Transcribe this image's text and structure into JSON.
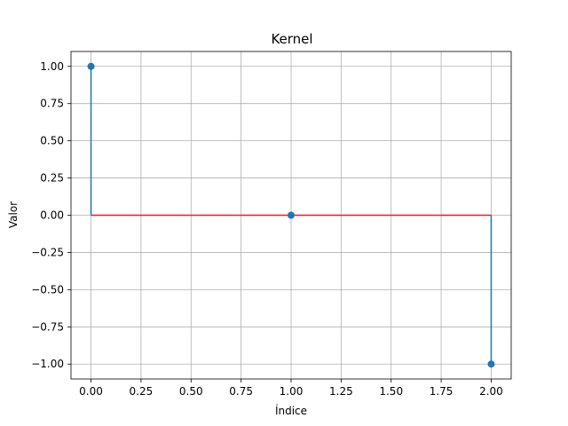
{
  "chart_data": {
    "type": "stem",
    "title": "Kernel",
    "xlabel": "Índice",
    "ylabel": "Valor",
    "x": [
      0,
      1,
      2
    ],
    "y": [
      1,
      0,
      -1
    ],
    "baseline": 0,
    "xlim": [
      -0.1,
      2.1
    ],
    "ylim": [
      -1.1,
      1.1
    ],
    "xticks": [
      0,
      0.25,
      0.5,
      0.75,
      1,
      1.25,
      1.5,
      1.75,
      2
    ],
    "xtick_labels": [
      "0.00",
      "0.25",
      "0.50",
      "0.75",
      "1.00",
      "1.25",
      "1.50",
      "1.75",
      "2.00"
    ],
    "yticks": [
      1,
      0.75,
      0.5,
      0.25,
      0,
      -0.25,
      -0.5,
      -0.75,
      -1
    ],
    "ytick_labels": [
      "1.00",
      "0.75",
      "0.50",
      "0.25",
      "0.00",
      "−0.25",
      "−0.50",
      "−0.75",
      "−1.00"
    ],
    "grid": true,
    "colors": {
      "stem": "#1f77b4",
      "marker": "#1f77b4",
      "baseline": "#d62728"
    }
  }
}
